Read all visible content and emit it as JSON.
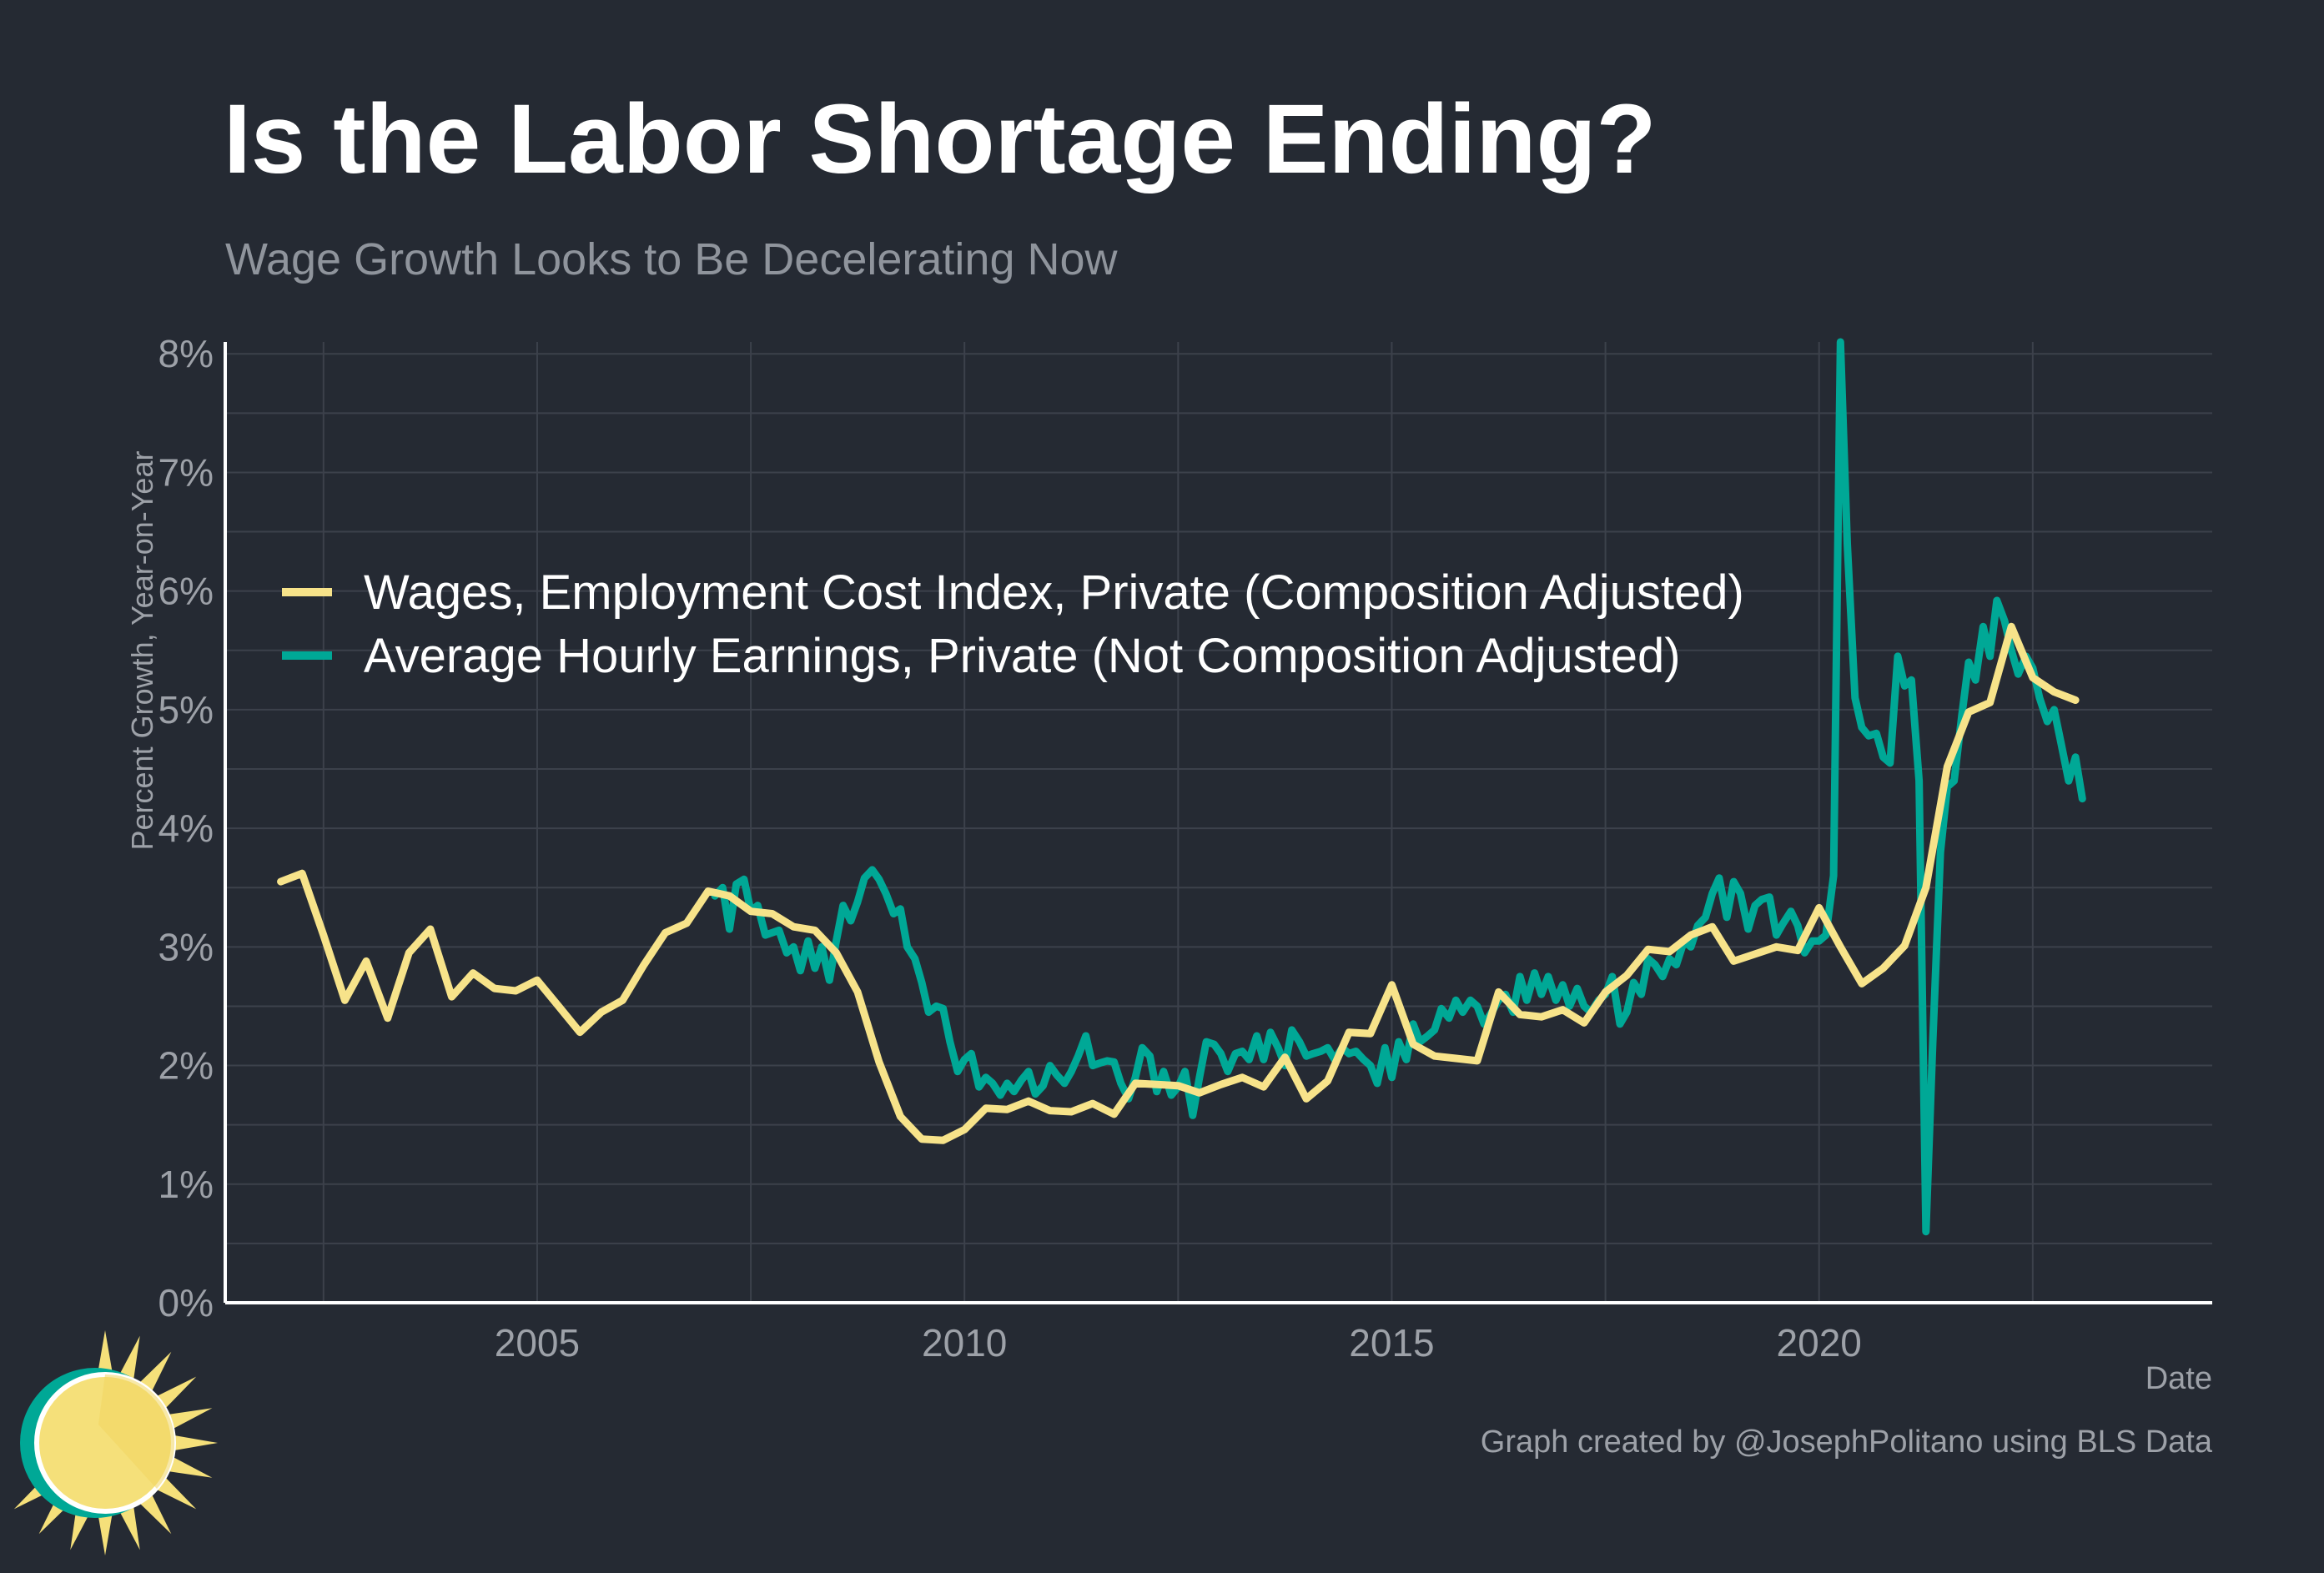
{
  "header": {
    "title": "Is the Labor Shortage Ending?",
    "subtitle": "Wage Growth Looks to Be Decelerating Now"
  },
  "footer": {
    "caption": "Graph created by @JosephPolitano using BLS Data"
  },
  "colors": {
    "background": "#252a33",
    "grid": "#3c414b",
    "axis": "#ffffff",
    "eci": "#f7e38a",
    "ahe": "#00a896",
    "logo_sun": "#f5e07a",
    "logo_ring": "#00a896"
  },
  "logo": {
    "icon": "sun-logo-icon"
  },
  "chart_data": {
    "type": "line",
    "xlabel": "Date",
    "ylabel": "Percent Growth, Year-on-Year",
    "xlim": [
      2001.35,
      2024.6
    ],
    "ylim": [
      0,
      8.1
    ],
    "x_ticks": [
      2005,
      2010,
      2015,
      2020
    ],
    "x_tick_labels": [
      "2005",
      "2010",
      "2015",
      "2020"
    ],
    "y_ticks": [
      0,
      1,
      2,
      3,
      4,
      5,
      6,
      7,
      8
    ],
    "y_tick_labels": [
      "0%",
      "1%",
      "2%",
      "3%",
      "4%",
      "5%",
      "6%",
      "7%",
      "8%"
    ],
    "grid": true,
    "legend_position": "upper-left",
    "series": [
      {
        "name": "Wages, Employment Cost Index, Private (Composition Adjusted)",
        "color": "#f7e38a",
        "points": [
          [
            2002.0,
            3.55
          ],
          [
            2002.25,
            3.62
          ],
          [
            2002.5,
            3.1
          ],
          [
            2002.75,
            2.55
          ],
          [
            2003.0,
            2.88
          ],
          [
            2003.25,
            2.4
          ],
          [
            2003.5,
            2.95
          ],
          [
            2003.75,
            3.15
          ],
          [
            2004.0,
            2.58
          ],
          [
            2004.25,
            2.78
          ],
          [
            2004.5,
            2.65
          ],
          [
            2004.75,
            2.63
          ],
          [
            2005.0,
            2.72
          ],
          [
            2005.25,
            2.5
          ],
          [
            2005.5,
            2.28
          ],
          [
            2005.75,
            2.45
          ],
          [
            2006.0,
            2.55
          ],
          [
            2006.25,
            2.85
          ],
          [
            2006.5,
            3.12
          ],
          [
            2006.75,
            3.2
          ],
          [
            2007.0,
            3.47
          ],
          [
            2007.25,
            3.43
          ],
          [
            2007.5,
            3.3
          ],
          [
            2007.75,
            3.28
          ],
          [
            2008.0,
            3.17
          ],
          [
            2008.25,
            3.14
          ],
          [
            2008.5,
            2.95
          ],
          [
            2008.75,
            2.62
          ],
          [
            2009.0,
            2.03
          ],
          [
            2009.25,
            1.57
          ],
          [
            2009.5,
            1.38
          ],
          [
            2009.75,
            1.37
          ],
          [
            2010.0,
            1.46
          ],
          [
            2010.25,
            1.64
          ],
          [
            2010.5,
            1.63
          ],
          [
            2010.75,
            1.7
          ],
          [
            2011.0,
            1.62
          ],
          [
            2011.25,
            1.61
          ],
          [
            2011.5,
            1.68
          ],
          [
            2011.75,
            1.59
          ],
          [
            2012.0,
            1.85
          ],
          [
            2012.25,
            1.84
          ],
          [
            2012.5,
            1.83
          ],
          [
            2012.75,
            1.77
          ],
          [
            2013.0,
            1.84
          ],
          [
            2013.25,
            1.9
          ],
          [
            2013.5,
            1.82
          ],
          [
            2013.75,
            2.07
          ],
          [
            2014.0,
            1.72
          ],
          [
            2014.25,
            1.87
          ],
          [
            2014.5,
            2.28
          ],
          [
            2014.75,
            2.27
          ],
          [
            2015.0,
            2.68
          ],
          [
            2015.25,
            2.18
          ],
          [
            2015.5,
            2.08
          ],
          [
            2015.75,
            2.06
          ],
          [
            2016.0,
            2.04
          ],
          [
            2016.25,
            2.62
          ],
          [
            2016.5,
            2.43
          ],
          [
            2016.75,
            2.41
          ],
          [
            2017.0,
            2.47
          ],
          [
            2017.25,
            2.36
          ],
          [
            2017.5,
            2.62
          ],
          [
            2017.75,
            2.76
          ],
          [
            2018.0,
            2.98
          ],
          [
            2018.25,
            2.96
          ],
          [
            2018.5,
            3.1
          ],
          [
            2018.75,
            3.17
          ],
          [
            2019.0,
            2.88
          ],
          [
            2019.25,
            2.94
          ],
          [
            2019.5,
            3.0
          ],
          [
            2019.75,
            2.97
          ],
          [
            2020.0,
            3.33
          ],
          [
            2020.25,
            3.0
          ],
          [
            2020.5,
            2.69
          ],
          [
            2020.75,
            2.82
          ],
          [
            2021.0,
            3.01
          ],
          [
            2021.25,
            3.5
          ],
          [
            2021.5,
            4.52
          ],
          [
            2021.75,
            4.98
          ],
          [
            2022.0,
            5.06
          ],
          [
            2022.25,
            5.7
          ],
          [
            2022.5,
            5.27
          ],
          [
            2022.75,
            5.15
          ],
          [
            2023.0,
            5.08
          ]
        ]
      },
      {
        "name": "Average Hourly Earnings, Private (Not Composition Adjusted)",
        "color": "#00a896",
        "points": [
          [
            2007.08,
            3.43
          ],
          [
            2007.17,
            3.5
          ],
          [
            2007.25,
            3.15
          ],
          [
            2007.33,
            3.53
          ],
          [
            2007.42,
            3.57
          ],
          [
            2007.5,
            3.3
          ],
          [
            2007.58,
            3.35
          ],
          [
            2007.67,
            3.1
          ],
          [
            2007.75,
            3.12
          ],
          [
            2007.83,
            3.14
          ],
          [
            2007.92,
            2.95
          ],
          [
            2008.0,
            3.0
          ],
          [
            2008.08,
            2.8
          ],
          [
            2008.17,
            3.05
          ],
          [
            2008.25,
            2.82
          ],
          [
            2008.33,
            3.0
          ],
          [
            2008.42,
            2.72
          ],
          [
            2008.5,
            3.05
          ],
          [
            2008.58,
            3.35
          ],
          [
            2008.67,
            3.22
          ],
          [
            2008.75,
            3.38
          ],
          [
            2008.83,
            3.58
          ],
          [
            2008.92,
            3.65
          ],
          [
            2009.0,
            3.57
          ],
          [
            2009.08,
            3.45
          ],
          [
            2009.17,
            3.28
          ],
          [
            2009.25,
            3.32
          ],
          [
            2009.33,
            3.0
          ],
          [
            2009.42,
            2.9
          ],
          [
            2009.5,
            2.7
          ],
          [
            2009.58,
            2.45
          ],
          [
            2009.67,
            2.5
          ],
          [
            2009.75,
            2.48
          ],
          [
            2009.83,
            2.2
          ],
          [
            2009.92,
            1.95
          ],
          [
            2010.0,
            2.05
          ],
          [
            2010.08,
            2.1
          ],
          [
            2010.17,
            1.82
          ],
          [
            2010.25,
            1.9
          ],
          [
            2010.33,
            1.85
          ],
          [
            2010.42,
            1.75
          ],
          [
            2010.5,
            1.85
          ],
          [
            2010.58,
            1.78
          ],
          [
            2010.67,
            1.88
          ],
          [
            2010.75,
            1.95
          ],
          [
            2010.83,
            1.76
          ],
          [
            2010.92,
            1.83
          ],
          [
            2011.0,
            2.0
          ],
          [
            2011.08,
            1.92
          ],
          [
            2011.17,
            1.85
          ],
          [
            2011.25,
            1.95
          ],
          [
            2011.33,
            2.08
          ],
          [
            2011.42,
            2.25
          ],
          [
            2011.5,
            2.0
          ],
          [
            2011.58,
            2.02
          ],
          [
            2011.67,
            2.04
          ],
          [
            2011.75,
            2.03
          ],
          [
            2011.83,
            1.85
          ],
          [
            2011.92,
            1.72
          ],
          [
            2012.0,
            1.9
          ],
          [
            2012.08,
            2.15
          ],
          [
            2012.17,
            2.08
          ],
          [
            2012.25,
            1.78
          ],
          [
            2012.33,
            1.95
          ],
          [
            2012.42,
            1.75
          ],
          [
            2012.5,
            1.82
          ],
          [
            2012.58,
            1.95
          ],
          [
            2012.67,
            1.58
          ],
          [
            2012.75,
            1.9
          ],
          [
            2012.83,
            2.2
          ],
          [
            2012.92,
            2.18
          ],
          [
            2013.0,
            2.1
          ],
          [
            2013.08,
            1.95
          ],
          [
            2013.17,
            2.1
          ],
          [
            2013.25,
            2.12
          ],
          [
            2013.33,
            2.05
          ],
          [
            2013.42,
            2.25
          ],
          [
            2013.5,
            2.05
          ],
          [
            2013.58,
            2.28
          ],
          [
            2013.67,
            2.15
          ],
          [
            2013.75,
            2.0
          ],
          [
            2013.83,
            2.3
          ],
          [
            2013.92,
            2.2
          ],
          [
            2014.0,
            2.08
          ],
          [
            2014.08,
            2.1
          ],
          [
            2014.17,
            2.12
          ],
          [
            2014.25,
            2.15
          ],
          [
            2014.33,
            2.05
          ],
          [
            2014.42,
            2.15
          ],
          [
            2014.5,
            2.1
          ],
          [
            2014.58,
            2.12
          ],
          [
            2014.67,
            2.05
          ],
          [
            2014.75,
            2.0
          ],
          [
            2014.83,
            1.85
          ],
          [
            2014.92,
            2.15
          ],
          [
            2015.0,
            1.9
          ],
          [
            2015.08,
            2.2
          ],
          [
            2015.17,
            2.05
          ],
          [
            2015.25,
            2.35
          ],
          [
            2015.33,
            2.2
          ],
          [
            2015.42,
            2.25
          ],
          [
            2015.5,
            2.3
          ],
          [
            2015.58,
            2.48
          ],
          [
            2015.67,
            2.4
          ],
          [
            2015.75,
            2.55
          ],
          [
            2015.83,
            2.45
          ],
          [
            2015.92,
            2.55
          ],
          [
            2016.0,
            2.5
          ],
          [
            2016.08,
            2.35
          ],
          [
            2016.17,
            2.45
          ],
          [
            2016.25,
            2.55
          ],
          [
            2016.33,
            2.6
          ],
          [
            2016.42,
            2.45
          ],
          [
            2016.5,
            2.75
          ],
          [
            2016.58,
            2.55
          ],
          [
            2016.67,
            2.78
          ],
          [
            2016.75,
            2.6
          ],
          [
            2016.83,
            2.75
          ],
          [
            2016.92,
            2.55
          ],
          [
            2017.0,
            2.68
          ],
          [
            2017.08,
            2.5
          ],
          [
            2017.17,
            2.65
          ],
          [
            2017.25,
            2.5
          ],
          [
            2017.33,
            2.45
          ],
          [
            2017.42,
            2.55
          ],
          [
            2017.5,
            2.6
          ],
          [
            2017.58,
            2.75
          ],
          [
            2017.67,
            2.35
          ],
          [
            2017.75,
            2.45
          ],
          [
            2017.83,
            2.7
          ],
          [
            2017.92,
            2.6
          ],
          [
            2018.0,
            2.9
          ],
          [
            2018.08,
            2.85
          ],
          [
            2018.17,
            2.75
          ],
          [
            2018.25,
            2.9
          ],
          [
            2018.33,
            2.85
          ],
          [
            2018.42,
            3.05
          ],
          [
            2018.5,
            3.0
          ],
          [
            2018.58,
            3.18
          ],
          [
            2018.67,
            3.25
          ],
          [
            2018.75,
            3.45
          ],
          [
            2018.83,
            3.58
          ],
          [
            2018.92,
            3.25
          ],
          [
            2019.0,
            3.55
          ],
          [
            2019.08,
            3.45
          ],
          [
            2019.17,
            3.15
          ],
          [
            2019.25,
            3.35
          ],
          [
            2019.33,
            3.4
          ],
          [
            2019.42,
            3.42
          ],
          [
            2019.5,
            3.1
          ],
          [
            2019.58,
            3.2
          ],
          [
            2019.67,
            3.3
          ],
          [
            2019.75,
            3.18
          ],
          [
            2019.83,
            2.95
          ],
          [
            2019.92,
            3.05
          ],
          [
            2020.0,
            3.05
          ],
          [
            2020.08,
            3.1
          ],
          [
            2020.17,
            3.6
          ],
          [
            2020.25,
            8.1
          ],
          [
            2020.33,
            6.4
          ],
          [
            2020.42,
            5.1
          ],
          [
            2020.5,
            4.85
          ],
          [
            2020.58,
            4.78
          ],
          [
            2020.67,
            4.8
          ],
          [
            2020.75,
            4.6
          ],
          [
            2020.83,
            4.55
          ],
          [
            2020.92,
            5.45
          ],
          [
            2021.0,
            5.2
          ],
          [
            2021.08,
            5.25
          ],
          [
            2021.17,
            4.4
          ],
          [
            2021.25,
            0.6
          ],
          [
            2021.33,
            2.2
          ],
          [
            2021.42,
            3.8
          ],
          [
            2021.5,
            4.35
          ],
          [
            2021.58,
            4.4
          ],
          [
            2021.67,
            4.95
          ],
          [
            2021.75,
            5.4
          ],
          [
            2021.83,
            5.25
          ],
          [
            2021.92,
            5.7
          ],
          [
            2022.0,
            5.45
          ],
          [
            2022.08,
            5.92
          ],
          [
            2022.17,
            5.75
          ],
          [
            2022.25,
            5.5
          ],
          [
            2022.33,
            5.3
          ],
          [
            2022.42,
            5.45
          ],
          [
            2022.5,
            5.35
          ],
          [
            2022.58,
            5.1
          ],
          [
            2022.67,
            4.9
          ],
          [
            2022.75,
            5.0
          ],
          [
            2022.83,
            4.72
          ],
          [
            2022.92,
            4.4
          ],
          [
            2023.0,
            4.6
          ],
          [
            2023.08,
            4.25
          ]
        ]
      }
    ]
  }
}
